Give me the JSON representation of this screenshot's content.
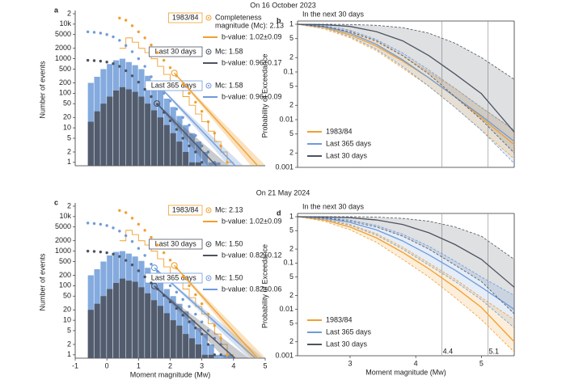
{
  "chart_data": [
    {
      "type": "histogram",
      "panel_label": "a",
      "title": "On 16 October 2023",
      "ylabel": "Number of events",
      "xlim": [
        -1,
        5
      ],
      "ylim": [
        0.8,
        20000
      ],
      "log_y": true,
      "yticks": [
        1,
        2,
        5,
        10,
        20,
        50,
        100,
        200,
        500,
        1000,
        2000,
        5000,
        {
          "value": 10000,
          "label": "10k"
        },
        {
          "value": 20000,
          "label": "2"
        }
      ],
      "bins": [
        -0.6,
        -0.4,
        -0.2,
        0,
        0.2,
        0.4,
        0.6,
        0.8,
        1,
        1.2,
        1.4,
        1.6,
        1.8,
        2,
        2.2,
        2.4,
        2.6,
        2.8,
        3,
        3.2,
        3.4,
        3.6,
        3.8,
        4
      ],
      "series": [
        {
          "name": "Last 365 days",
          "color": "#6f9bd8",
          "hist_style": "bar",
          "values": [
            200,
            300,
            500,
            700,
            900,
            1000,
            800,
            650,
            500,
            320,
            200,
            120,
            70,
            40,
            22,
            12,
            7,
            4,
            2,
            1,
            1,
            0,
            0
          ],
          "cumulative": [
            6000,
            5800,
            5500,
            5000,
            4300,
            3400,
            2400,
            1600,
            1000,
            600,
            300,
            180,
            100,
            60,
            35,
            20,
            12,
            6,
            3,
            2,
            1,
            null,
            null
          ],
          "mc": 1.58,
          "mc_label": [
            "Mc: 1.58"
          ],
          "b_value": 0.96,
          "b_err": 0.09,
          "b_label": "b-value: 0.96±0.09"
        },
        {
          "name": "Last 30 days",
          "color": "#4d5360",
          "hist_style": "bar",
          "values": [
            15,
            30,
            50,
            80,
            120,
            150,
            130,
            110,
            80,
            50,
            32,
            20,
            12,
            7,
            4,
            2,
            1,
            1,
            0,
            0,
            0,
            0,
            0
          ],
          "cumulative": [
            900,
            880,
            850,
            800,
            720,
            600,
            450,
            320,
            210,
            130,
            80,
            48,
            28,
            16,
            9,
            5,
            3,
            2,
            1,
            null,
            null,
            null,
            null
          ],
          "mc": 1.58,
          "mc_label": [
            "Mc: 1.58"
          ],
          "b_value": 0.96,
          "b_err": 0.17,
          "b_label": "b-value: 0.96±0.17"
        },
        {
          "name": "1983/84",
          "color": "#f0a030",
          "hist_style": "step",
          "values": [
            null,
            null,
            null,
            null,
            null,
            2000,
            4000,
            3000,
            2000,
            1500,
            1000,
            600,
            350,
            230,
            140,
            80,
            45,
            25,
            15,
            8,
            4,
            2,
            1
          ],
          "cumulative": [
            null,
            null,
            null,
            null,
            null,
            15000,
            13000,
            9000,
            6000,
            4000,
            2500,
            1500,
            900,
            550,
            320,
            180,
            100,
            55,
            30,
            15,
            7,
            3,
            1
          ],
          "mc": 2.13,
          "mc_label": [
            "Completeness",
            "magnitude (Mc): 2.13"
          ],
          "b_value": 1.02,
          "b_err": 0.09,
          "b_label": "b-value: 1.02±0.09"
        }
      ]
    },
    {
      "type": "exceedance",
      "panel_label": "b",
      "subtitle": "In the next 30 days",
      "ylabel": "Probability of Exceedance",
      "xlim": [
        2.2,
        5.5
      ],
      "ylim": [
        0.001,
        1
      ],
      "log_y": true,
      "yticks": [
        1,
        {
          "value": 0.5,
          "label": "5"
        },
        {
          "value": 0.2,
          "label": "2"
        },
        0.1,
        {
          "value": 0.05,
          "label": "5"
        },
        {
          "value": 0.02,
          "label": "2"
        },
        0.01,
        {
          "value": 0.005,
          "label": "5"
        },
        {
          "value": 0.002,
          "label": "2"
        },
        0.001
      ],
      "vlines": [
        4.4,
        5.1
      ],
      "x": [
        2.2,
        2.6,
        3.0,
        3.4,
        3.8,
        4.2,
        4.6,
        5.0,
        5.5
      ],
      "series": [
        {
          "name": "1983/84",
          "color": "#f0a030",
          "values": [
            1,
            0.85,
            0.6,
            0.35,
            0.17,
            0.075,
            0.03,
            0.011,
            0.003
          ],
          "upper": [
            1,
            0.9,
            0.68,
            0.43,
            0.22,
            0.1,
            0.045,
            0.018,
            0.006
          ],
          "lower": [
            1,
            0.8,
            0.52,
            0.28,
            0.12,
            0.05,
            0.018,
            0.006,
            0.0015
          ]
        },
        {
          "name": "Last 365 days",
          "color": "#6f9bd8",
          "values": [
            1,
            0.9,
            0.65,
            0.38,
            0.18,
            0.075,
            0.03,
            0.012,
            0.0035
          ],
          "upper": [
            1,
            0.95,
            0.75,
            0.48,
            0.25,
            0.11,
            0.045,
            0.018,
            0.006
          ],
          "lower": [
            1,
            0.85,
            0.55,
            0.3,
            0.13,
            0.05,
            0.018,
            0.006,
            0.0012
          ]
        },
        {
          "name": "Last 30 days",
          "color": "#4d5360",
          "values": [
            1,
            0.98,
            0.9,
            0.7,
            0.45,
            0.22,
            0.09,
            0.035,
            0.0055
          ],
          "upper": [
            1,
            1,
            0.99,
            0.95,
            0.85,
            0.65,
            0.4,
            0.2,
            0.07
          ],
          "lower": [
            1,
            0.9,
            0.7,
            0.45,
            0.22,
            0.09,
            0.03,
            0.01,
            0.002
          ]
        }
      ]
    },
    {
      "type": "histogram",
      "panel_label": "c",
      "title": "On 21 May 2024",
      "ylabel": "Number of events",
      "xlabel": "Moment magnitude (Mw)",
      "xlim": [
        -1,
        5
      ],
      "xticks": [
        -1,
        0,
        1,
        2,
        3,
        4,
        5
      ],
      "ylim": [
        0.8,
        20000
      ],
      "log_y": true,
      "yticks": [
        1,
        2,
        5,
        10,
        20,
        50,
        100,
        200,
        500,
        1000,
        2000,
        5000,
        {
          "value": 10000,
          "label": "10k"
        },
        {
          "value": 20000,
          "label": "2"
        }
      ],
      "bins": [
        -0.6,
        -0.4,
        -0.2,
        0,
        0.2,
        0.4,
        0.6,
        0.8,
        1,
        1.2,
        1.4,
        1.6,
        1.8,
        2,
        2.2,
        2.4,
        2.6,
        2.8,
        3,
        3.2,
        3.4,
        3.6,
        3.8,
        4
      ],
      "series": [
        {
          "name": "Last 365 days",
          "color": "#6f9bd8",
          "hist_style": "bar",
          "values": [
            200,
            300,
            500,
            750,
            950,
            1000,
            850,
            700,
            520,
            330,
            210,
            130,
            80,
            50,
            30,
            18,
            10,
            6,
            4,
            2,
            1,
            1,
            1
          ],
          "cumulative": [
            6500,
            6300,
            6000,
            5500,
            4700,
            3800,
            2800,
            1900,
            1200,
            750,
            420,
            260,
            160,
            100,
            65,
            40,
            25,
            15,
            9,
            5,
            3,
            2,
            1
          ],
          "mc": 1.5,
          "mc_label": [
            "Mc: 1.50"
          ],
          "b_value": 0.82,
          "b_err": 0.06,
          "b_label": "b-value: 0.82±0.06"
        },
        {
          "name": "Last 30 days",
          "color": "#4d5360",
          "hist_style": "bar",
          "values": [
            20,
            30,
            50,
            80,
            120,
            160,
            140,
            130,
            90,
            60,
            38,
            26,
            16,
            10,
            7,
            4,
            3,
            2,
            1,
            1,
            0,
            0,
            0
          ],
          "cumulative": [
            1000,
            980,
            950,
            900,
            820,
            700,
            540,
            400,
            270,
            180,
            120,
            80,
            52,
            34,
            22,
            14,
            9,
            6,
            4,
            2,
            1,
            1,
            null
          ],
          "mc": 1.5,
          "mc_label": [
            "Mc: 1.50"
          ],
          "b_value": 0.82,
          "b_err": 0.12,
          "b_label": "b-value: 0.82±0.12"
        },
        {
          "name": "1983/84",
          "color": "#f0a030",
          "hist_style": "step",
          "values": [
            null,
            null,
            null,
            null,
            null,
            2000,
            4000,
            3000,
            2000,
            1500,
            1000,
            600,
            350,
            230,
            140,
            80,
            45,
            25,
            15,
            8,
            4,
            2,
            1
          ],
          "cumulative": [
            null,
            null,
            null,
            null,
            null,
            15000,
            13000,
            9000,
            6000,
            4000,
            2500,
            1500,
            900,
            550,
            320,
            180,
            100,
            55,
            30,
            15,
            7,
            3,
            1
          ],
          "mc": 2.13,
          "mc_label": [
            "Mc: 2.13"
          ],
          "b_value": 1.02,
          "b_err": 0.09,
          "b_label": "b-value: 1.02±0.09"
        }
      ]
    },
    {
      "type": "exceedance",
      "panel_label": "d",
      "subtitle": "In the next 30 days",
      "ylabel": "Probability of Exceedance",
      "xlabel": "Moment magnitude (Mw)",
      "xlim": [
        2.2,
        5.5
      ],
      "xticks": [
        3,
        4,
        5
      ],
      "ylim": [
        0.001,
        1
      ],
      "log_y": true,
      "yticks": [
        1,
        {
          "value": 0.5,
          "label": "5"
        },
        {
          "value": 0.2,
          "label": "2"
        },
        0.1,
        {
          "value": 0.05,
          "label": "5"
        },
        {
          "value": 0.02,
          "label": "2"
        },
        0.01,
        {
          "value": 0.005,
          "label": "5"
        },
        {
          "value": 0.002,
          "label": "2"
        },
        0.001
      ],
      "vlines": [
        4.4,
        5.1
      ],
      "vline_labels": [
        "4.4",
        "5.1"
      ],
      "x": [
        2.2,
        2.6,
        3.0,
        3.4,
        3.8,
        4.2,
        4.6,
        5.0,
        5.5
      ],
      "series": [
        {
          "name": "1983/84",
          "color": "#f0a030",
          "values": [
            1,
            0.85,
            0.6,
            0.35,
            0.17,
            0.075,
            0.03,
            0.011,
            0.002
          ],
          "upper": [
            1,
            0.9,
            0.68,
            0.43,
            0.22,
            0.1,
            0.045,
            0.018,
            0.006
          ],
          "lower": [
            1,
            0.8,
            0.52,
            0.28,
            0.12,
            0.05,
            0.018,
            0.006,
            0.0012
          ]
        },
        {
          "name": "Last 365 days",
          "color": "#6f9bd8",
          "values": [
            1,
            0.93,
            0.75,
            0.52,
            0.3,
            0.15,
            0.07,
            0.03,
            0.01
          ],
          "upper": [
            1,
            0.97,
            0.85,
            0.65,
            0.42,
            0.23,
            0.11,
            0.05,
            0.02
          ],
          "lower": [
            1,
            0.88,
            0.65,
            0.4,
            0.2,
            0.09,
            0.04,
            0.016,
            0.004
          ]
        },
        {
          "name": "Last 30 days",
          "color": "#4d5360",
          "values": [
            1,
            0.99,
            0.95,
            0.85,
            0.68,
            0.45,
            0.25,
            0.12,
            0.03
          ],
          "upper": [
            1,
            1,
            1,
            0.98,
            0.92,
            0.8,
            0.6,
            0.38,
            0.12
          ],
          "lower": [
            1,
            0.95,
            0.8,
            0.6,
            0.38,
            0.2,
            0.09,
            0.04,
            0.008
          ]
        }
      ]
    }
  ]
}
